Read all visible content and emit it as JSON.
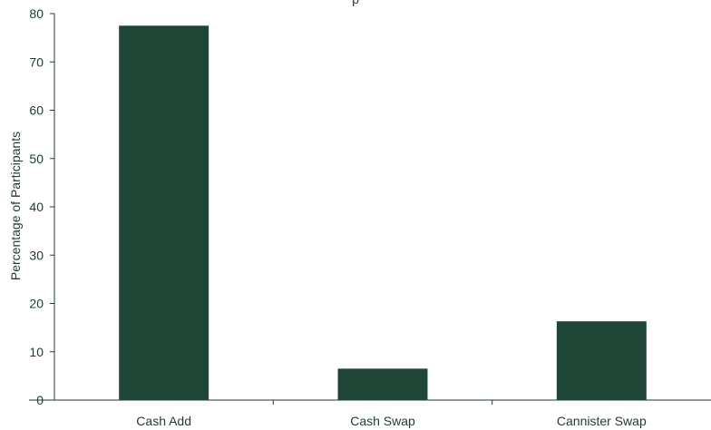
{
  "chart_data": {
    "type": "bar",
    "title": "p",
    "xlabel": "",
    "ylabel": "Percentage of Participants",
    "categories": [
      "Cash Add",
      "Cash Swap",
      "Cannister Swap"
    ],
    "values": [
      77.5,
      6.5,
      16.3
    ],
    "ylim": [
      0,
      80
    ],
    "yticks": [
      "0",
      "10",
      "20",
      "30",
      "40",
      "50",
      "60",
      "70",
      "80"
    ],
    "grid": false,
    "legend": "none",
    "colors": {
      "bar": "#1e4535",
      "axis": "#1f3a36",
      "text": "#1f3a36"
    }
  }
}
